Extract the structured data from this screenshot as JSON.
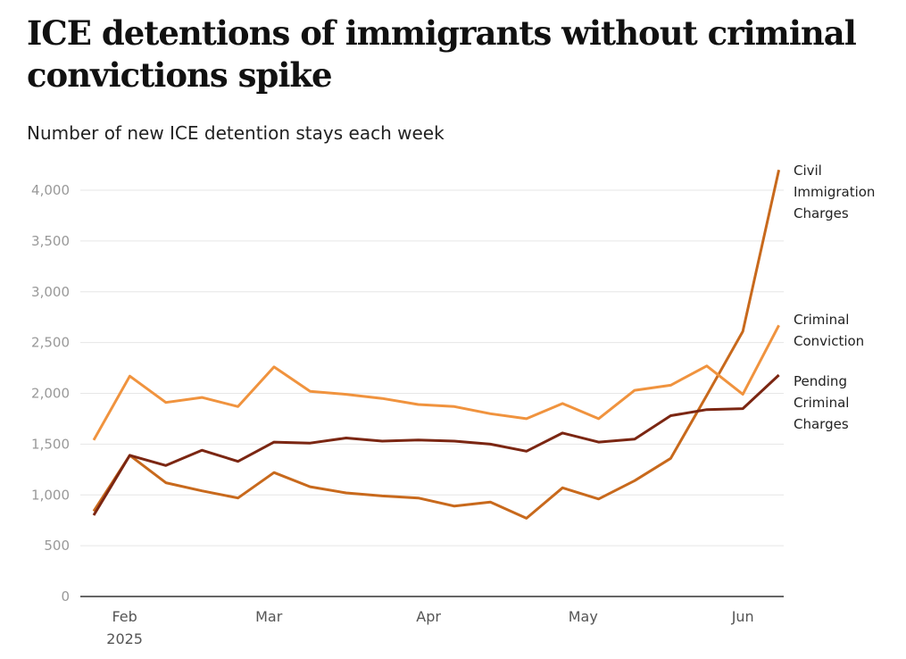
{
  "title": "ICE detentions of immigrants without criminal convictions spike",
  "subtitle": "Number of new ICE detention stays each week",
  "chart_data": {
    "type": "line",
    "title": "ICE detentions of immigrants without criminal convictions spike",
    "subtitle": "Number of new ICE detention stays each week",
    "ylim": [
      0,
      4000
    ],
    "yticks": [
      "0",
      "500",
      "1,000",
      "1,500",
      "2,000",
      "2,500",
      "3,000",
      "3,500",
      "4,000"
    ],
    "ytick_values": [
      0,
      500,
      1000,
      1500,
      2000,
      2500,
      3000,
      3500,
      4000
    ],
    "xticks": [
      {
        "date": "2025-02-01",
        "label": "Feb",
        "sublabel": "2025"
      },
      {
        "date": "2025-03-01",
        "label": "Mar"
      },
      {
        "date": "2025-04-01",
        "label": "Apr"
      },
      {
        "date": "2025-05-01",
        "label": "May"
      },
      {
        "date": "2025-06-01",
        "label": "Jun"
      }
    ],
    "grid": true,
    "x": [
      "2025-01-26",
      "2025-02-02",
      "2025-02-09",
      "2025-02-16",
      "2025-02-23",
      "2025-03-02",
      "2025-03-09",
      "2025-03-16",
      "2025-03-23",
      "2025-03-30",
      "2025-04-06",
      "2025-04-13",
      "2025-04-20",
      "2025-04-27",
      "2025-05-04",
      "2025-05-11",
      "2025-05-18",
      "2025-05-25",
      "2025-06-01",
      "2025-06-08"
    ],
    "series": [
      {
        "name": "Civil Immigration Charges",
        "label_lines": [
          "Civil",
          "Immigration",
          "Charges"
        ],
        "color": "#c8691c",
        "values": [
          840,
          1390,
          1120,
          1040,
          970,
          1220,
          1080,
          1020,
          990,
          970,
          890,
          930,
          770,
          1070,
          960,
          1140,
          1360,
          1980,
          2610,
          4200
        ]
      },
      {
        "name": "Criminal Conviction",
        "label_lines": [
          "Criminal",
          "Conviction"
        ],
        "color": "#f0933e",
        "values": [
          1540,
          2170,
          1910,
          1960,
          1870,
          2260,
          2020,
          1990,
          1950,
          1890,
          1870,
          1800,
          1750,
          1900,
          1750,
          2030,
          2080,
          2270,
          1990,
          2670
        ]
      },
      {
        "name": "Pending Criminal Charges",
        "label_lines": [
          "Pending",
          "Criminal",
          "Charges"
        ],
        "color": "#7b2612",
        "values": [
          800,
          1390,
          1290,
          1440,
          1330,
          1520,
          1510,
          1560,
          1530,
          1540,
          1530,
          1500,
          1430,
          1610,
          1520,
          1550,
          1780,
          1840,
          1850,
          2180
        ]
      }
    ]
  }
}
